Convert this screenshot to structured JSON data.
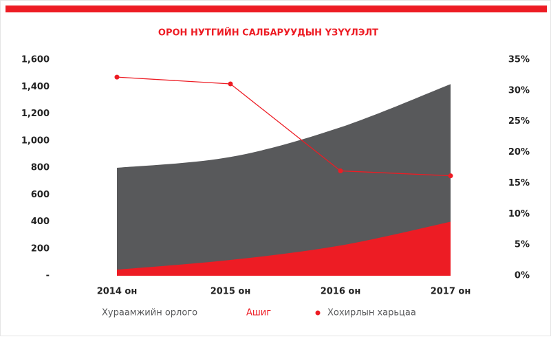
{
  "chart_data": {
    "type": "area",
    "title": "ОРОН НУТГИЙН САЛБАРУУДЫН ҮЗҮҮЛЭЛТ",
    "categories": [
      "2014 он",
      "2015 он",
      "2016 он",
      "2017 он"
    ],
    "series": [
      {
        "name": "Хураамжийн орлого",
        "color": "#58595b",
        "values": [
          800,
          880,
          1100,
          1420
        ]
      },
      {
        "name": "Ашиг",
        "color": "#ed1c24",
        "values": [
          45,
          117,
          224,
          400
        ]
      },
      {
        "name": "Хохирлын харьцаа",
        "color": "#ed1c24",
        "axis": "y2",
        "values": [
          32.2,
          31.1,
          17.0,
          16.2
        ]
      }
    ],
    "ylim": [
      0,
      1600
    ],
    "yticks": [
      {
        "value": 0,
        "label": "-"
      },
      200,
      400,
      600,
      800,
      {
        "value": 1000,
        "label": "1,000"
      },
      {
        "value": 1200,
        "label": "1,200"
      },
      {
        "value": 1400,
        "label": "1,400"
      },
      {
        "value": 1600,
        "label": "1,600"
      }
    ],
    "y2lim": [
      0,
      35
    ],
    "y2ticks": [
      {
        "value": 0,
        "label": "0%"
      },
      {
        "value": 5,
        "label": "5%"
      },
      {
        "value": 10,
        "label": "10%"
      },
      {
        "value": 15,
        "label": "15%"
      },
      {
        "value": 20,
        "label": "20%"
      },
      {
        "value": 25,
        "label": "25%"
      },
      {
        "value": 30,
        "label": "30%"
      },
      {
        "value": 35,
        "label": "35%"
      }
    ],
    "grid": false
  }
}
